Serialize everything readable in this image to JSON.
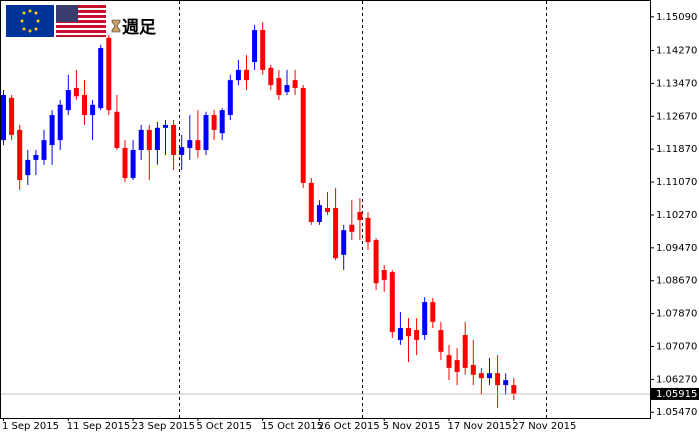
{
  "chart_data": {
    "type": "candlestick",
    "title": "週足",
    "categories": [
      "1 Sep 2015",
      null,
      null,
      null,
      null,
      null,
      null,
      null,
      "11 Sep 2015",
      null,
      null,
      null,
      null,
      null,
      null,
      null,
      "23 Sep 2015",
      null,
      null,
      null,
      null,
      null,
      null,
      null,
      "5 Oct 2015",
      null,
      null,
      null,
      null,
      null,
      null,
      null,
      "15 Oct 2015",
      null,
      null,
      null,
      null,
      null,
      null,
      "26 Oct 2015",
      null,
      null,
      null,
      null,
      null,
      null,
      null,
      "5 Nov 2015",
      null,
      null,
      null,
      null,
      null,
      null,
      null,
      "17 Nov 2015",
      null,
      null,
      null,
      null,
      null,
      null,
      null,
      "27 Nov 2015"
    ],
    "open": [
      1.1209,
      1.1312,
      1.1234,
      1.1124,
      1.1161,
      1.1161,
      1.1197,
      1.1209,
      1.1282,
      1.1336,
      1.1319,
      1.127,
      1.1287,
      1.1458,
      1.1278,
      1.119,
      1.1117,
      1.1185,
      1.1234,
      1.1185,
      1.1239,
      1.1246,
      1.1173,
      1.119,
      1.1209,
      1.1185,
      1.127,
      1.1226,
      1.127,
      1.1355,
      1.138,
      1.1399,
      1.1477,
      1.1385,
      1.136,
      1.1326,
      1.1355,
      1.1336,
      1.1105,
      1.101,
      1.1044,
      1.1044,
      1.093,
      1.1003,
      1.1034,
      1.102,
      1.0966,
      1.0893,
      1.0888,
      1.0723,
      1.0752,
      1.0747,
      1.0735,
      1.0815,
      1.0747,
      1.0686,
      1.0674,
      1.0735,
      1.0662,
      1.0642,
      1.063,
      1.0642,
      1.0613,
      1.0613
    ],
    "high": [
      1.1331,
      1.1319,
      1.1246,
      1.1185,
      1.1185,
      1.1234,
      1.1282,
      1.1307,
      1.1368,
      1.138,
      1.1355,
      1.1307,
      1.1441,
      1.1465,
      1.1319,
      1.1209,
      1.1209,
      1.1246,
      1.1246,
      1.1253,
      1.1258,
      1.1258,
      1.1222,
      1.127,
      1.1282,
      1.1278,
      1.1282,
      1.1287,
      1.1368,
      1.1404,
      1.1416,
      1.1489,
      1.1496,
      1.1392,
      1.138,
      1.138,
      1.138,
      1.1343,
      1.1117,
      1.1063,
      1.1083,
      1.1093,
      1.1003,
      1.1063,
      1.1068,
      1.1034,
      1.0971,
      1.0905,
      1.0893,
      1.0791,
      1.0776,
      1.0776,
      1.0827,
      1.0825,
      1.0767,
      1.0711,
      1.0703,
      1.0767,
      1.0723,
      1.0655,
      1.0679,
      1.0686,
      1.0642,
      1.063
    ],
    "low": [
      1.1197,
      1.1209,
      1.1088,
      1.11,
      1.1124,
      1.1149,
      1.1149,
      1.1185,
      1.127,
      1.1307,
      1.1246,
      1.1209,
      1.1282,
      1.127,
      1.1185,
      1.1107,
      1.1112,
      1.1161,
      1.1112,
      1.1149,
      1.1173,
      1.1136,
      1.1136,
      1.1161,
      1.1166,
      1.1173,
      1.1209,
      1.1209,
      1.1258,
      1.1343,
      1.1331,
      1.138,
      1.1368,
      1.1331,
      1.1307,
      1.1319,
      1.1319,
      1.1093,
      1.1003,
      1.1003,
      1.1027,
      1.0917,
      1.0893,
      1.0966,
      1.0966,
      1.0942,
      1.0844,
      1.084,
      1.0728,
      1.0711,
      1.0669,
      1.0686,
      1.0723,
      1.0752,
      1.0674,
      1.0625,
      1.0613,
      1.0638,
      1.0613,
      1.0589,
      1.0613,
      1.0557,
      1.0589,
      1.0577
    ],
    "close": [
      1.1319,
      1.1222,
      1.1112,
      1.1161,
      1.1173,
      1.1209,
      1.127,
      1.1295,
      1.1331,
      1.1316,
      1.127,
      1.1295,
      1.1433,
      1.1282,
      1.119,
      1.1117,
      1.1185,
      1.1234,
      1.1185,
      1.1239,
      1.1246,
      1.1173,
      1.1192,
      1.1209,
      1.1185,
      1.127,
      1.1234,
      1.1282,
      1.1355,
      1.138,
      1.1355,
      1.1477,
      1.138,
      1.1343,
      1.1319,
      1.1343,
      1.1336,
      1.1105,
      1.101,
      1.1051,
      1.1034,
      1.0922,
      1.099,
      1.0986,
      1.1015,
      1.0961,
      1.0861,
      1.0869,
      1.0742,
      1.0752,
      1.0732,
      1.0723,
      1.0815,
      1.0767,
      1.0694,
      1.0655,
      1.0645,
      1.0655,
      1.0638,
      1.063,
      1.0642,
      1.0613,
      1.0625,
      1.0592
    ],
    "up_color": "#0000ff",
    "down_color": "#ff0000",
    "current_price": 1.05915,
    "ylim": [
      1.0533,
      1.155
    ],
    "yticks": [
      {
        "value": 1.1509,
        "label": "1.15090"
      },
      {
        "value": 1.1427,
        "label": "1.14270"
      },
      {
        "value": 1.1347,
        "label": "1.13470"
      },
      {
        "value": 1.1267,
        "label": "1.12670"
      },
      {
        "value": 1.1187,
        "label": "1.11870"
      },
      {
        "value": 1.1107,
        "label": "1.11070"
      },
      {
        "value": 1.1027,
        "label": "1.10270"
      },
      {
        "value": 1.0947,
        "label": "1.09470"
      },
      {
        "value": 1.0867,
        "label": "1.08670"
      },
      {
        "value": 1.0787,
        "label": "1.07870"
      },
      {
        "value": 1.0707,
        "label": "1.07070"
      },
      {
        "value": 1.0627,
        "label": "1.06270"
      },
      {
        "value": 1.0547,
        "label": "1.05470"
      }
    ]
  }
}
